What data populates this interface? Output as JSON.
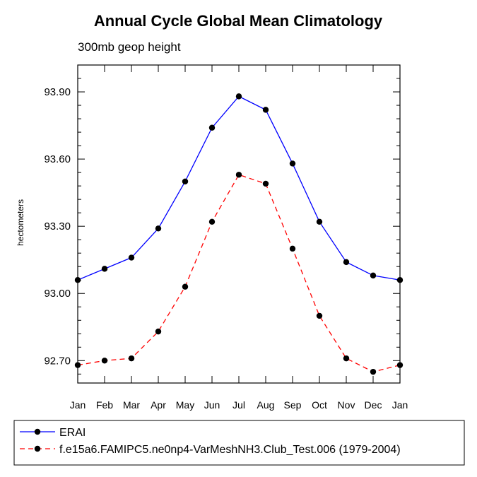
{
  "chart_data": {
    "type": "line",
    "title": "Annual Cycle Global Mean Climatology",
    "subtitle": "300mb geop height",
    "xlabel": "",
    "ylabel": "hectometers",
    "categories": [
      "Jan",
      "Feb",
      "Mar",
      "Apr",
      "May",
      "Jun",
      "Jul",
      "Aug",
      "Sep",
      "Oct",
      "Nov",
      "Dec",
      "Jan"
    ],
    "ylim": [
      92.6,
      94.02
    ],
    "yticks": [
      "93.90",
      "93.60",
      "93.30",
      "93.00",
      "92.70"
    ],
    "grid": false,
    "legend_position": "bottom",
    "series": [
      {
        "name": "ERAI",
        "color": "#0000ff",
        "dash": "solid",
        "values": [
          93.06,
          93.11,
          93.16,
          93.29,
          93.5,
          93.74,
          93.88,
          93.82,
          93.58,
          93.32,
          93.14,
          93.08,
          93.06
        ]
      },
      {
        "name": "f.e15a6.FAMIPC5.ne0np4-VarMeshNH3.Club_Test.006 (1979-2004)",
        "color": "#ff0000",
        "dash": "dashed",
        "values": [
          92.68,
          92.7,
          92.71,
          92.83,
          93.03,
          93.32,
          93.53,
          93.49,
          93.2,
          92.9,
          92.71,
          92.65,
          92.68
        ]
      }
    ]
  }
}
